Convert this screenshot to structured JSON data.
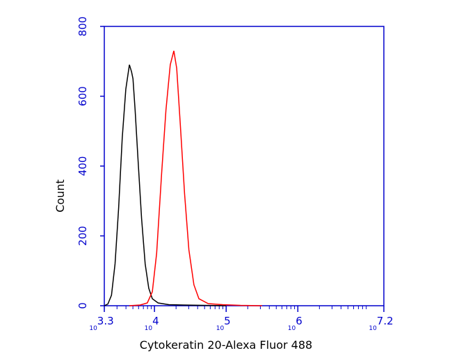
{
  "chart_data": {
    "type": "line",
    "xlabel": "Cytokeratin 20-Alexa Fluor 488",
    "ylabel": "Count",
    "x_log_scale": true,
    "xlim": [
      1995.26,
      15848931.92
    ],
    "xticks": [
      {
        "value": 1995.26,
        "label": "10",
        "exponent": "3.3"
      },
      {
        "value": 10000,
        "label": "10",
        "exponent": "4"
      },
      {
        "value": 100000,
        "label": "10",
        "exponent": "5"
      },
      {
        "value": 1000000,
        "label": "10",
        "exponent": "6"
      },
      {
        "value": 15848931.92,
        "label": "10",
        "exponent": "7.2"
      }
    ],
    "ylim": [
      0,
      800
    ],
    "yticks": [
      0,
      200,
      400,
      600,
      800
    ],
    "axis_color": "#0000cc",
    "series": [
      {
        "color": "#000000",
        "x": [
          1995,
          2239,
          2512,
          2818,
          3162,
          3548,
          3981,
          4467,
          4786,
          5012,
          5370,
          5888,
          6607,
          7413,
          8318,
          9333,
          11220,
          15849,
          25119,
          50119,
          100000
        ],
        "values": [
          0,
          5,
          30,
          120,
          280,
          480,
          620,
          690,
          670,
          650,
          560,
          420,
          250,
          120,
          50,
          20,
          8,
          3,
          2,
          1,
          0
        ]
      },
      {
        "color": "#ff0000",
        "x": [
          4467,
          6310,
          7943,
          9333,
          10715,
          12589,
          14454,
          16596,
          18621,
          20417,
          22909,
          26303,
          30200,
          35481,
          41687,
          56234,
          89125,
          158489,
          316228
        ],
        "values": [
          0,
          2,
          8,
          40,
          150,
          380,
          560,
          690,
          730,
          680,
          520,
          320,
          160,
          60,
          20,
          6,
          3,
          1,
          0
        ]
      }
    ]
  }
}
